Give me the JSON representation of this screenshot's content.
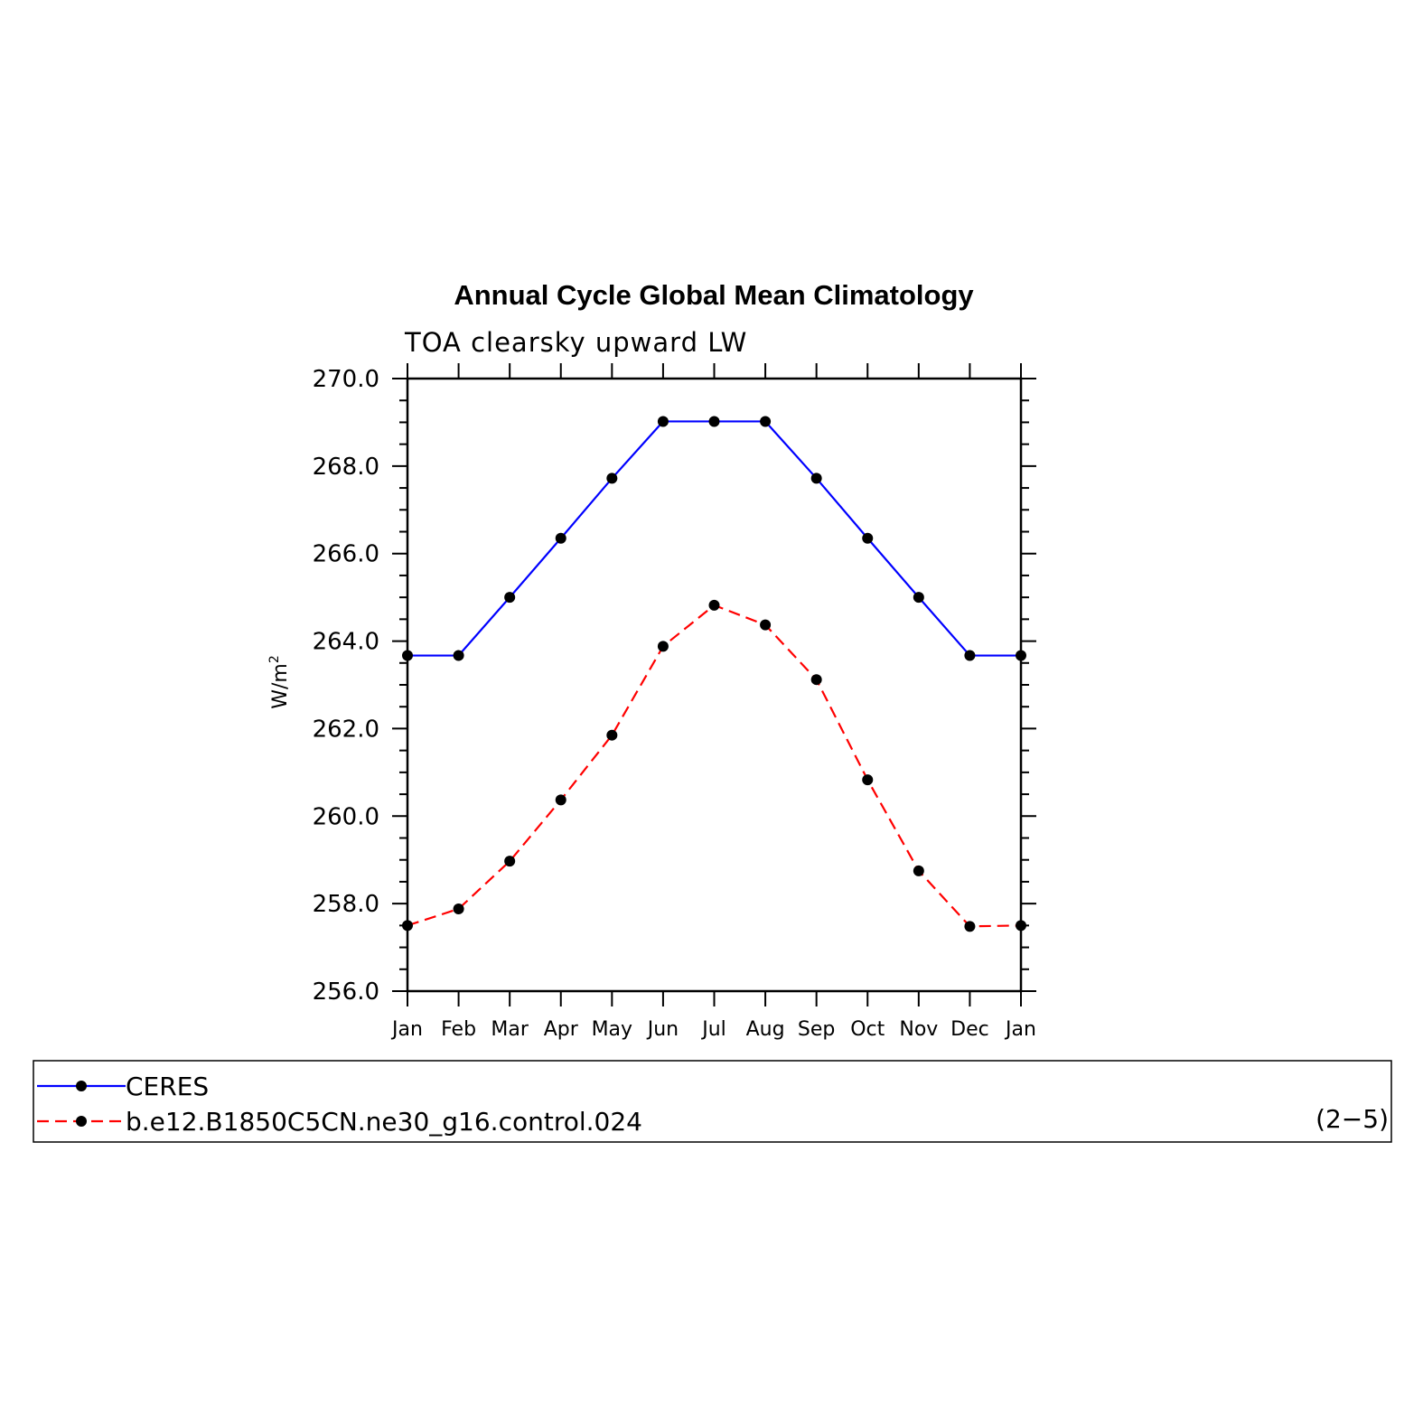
{
  "chart_data": {
    "type": "line",
    "title": "Annual Cycle Global Mean Climatology",
    "subtitle": "TOA clearsky upward LW",
    "ylabel": "W/m",
    "ylabel_sup": "2",
    "ylim": [
      256.0,
      270.0
    ],
    "yticks": [
      "256.0",
      "258.0",
      "260.0",
      "262.0",
      "264.0",
      "266.0",
      "268.0",
      "270.0"
    ],
    "categories": [
      "Jan",
      "Feb",
      "Mar",
      "Apr",
      "May",
      "Jun",
      "Jul",
      "Aug",
      "Sep",
      "Oct",
      "Nov",
      "Dec",
      "Jan"
    ],
    "series": [
      {
        "name": "CERES",
        "color": "#0000ff",
        "dash": "solid",
        "values": [
          263.67,
          263.67,
          265.0,
          266.35,
          267.72,
          269.02,
          269.02,
          269.02,
          267.72,
          266.35,
          265.0,
          263.67,
          263.67
        ]
      },
      {
        "name": "b.e12.B1850C5CN.ne30_g16.control.024",
        "color": "#ff0000",
        "dash": "dashed",
        "values": [
          257.5,
          257.88,
          258.97,
          260.37,
          261.85,
          263.88,
          264.82,
          264.37,
          263.12,
          260.83,
          258.75,
          257.48,
          257.5
        ]
      }
    ],
    "grid": false,
    "legend_position": "bottom",
    "annotation": "(2−5)"
  }
}
